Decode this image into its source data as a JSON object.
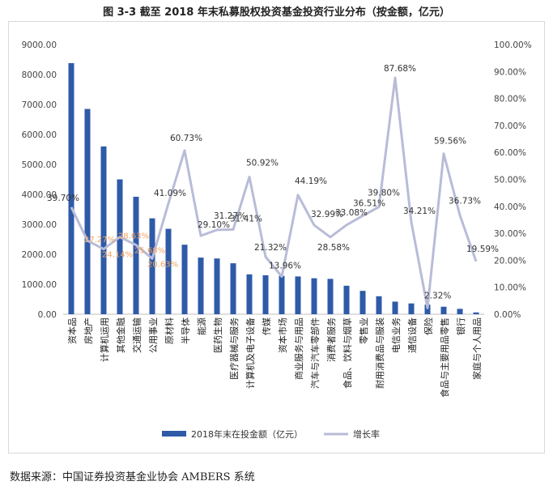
{
  "figure": {
    "title": "图 3-3  截至 2018 年末私募股权投资基金投资行业分布（按金额，亿元）",
    "source": "数据来源：中国证券投资基金业协会 AMBERS 系统"
  },
  "chart_data": {
    "type": "bar",
    "categories": [
      "资本品",
      "房地产",
      "计算机运用",
      "其他金融",
      "交通运输",
      "公用事业",
      "原材料",
      "半导体",
      "能源",
      "医药生物",
      "医疗器械与服务",
      "计算机及电子设备",
      "传媒",
      "资本市场",
      "商业服务与用品",
      "汽车与汽车零部件",
      "消费者服务",
      "食品、饮料与烟草",
      "零售业",
      "耐用消费品与服装",
      "电信业务",
      "通信设备",
      "保险",
      "食品与主要用品零售",
      "银行",
      "家庭与个人用品"
    ],
    "series": [
      {
        "name": "2018年末在投金额（亿元）",
        "type": "bar",
        "axis": "left",
        "color": "#2e5aa8",
        "values": [
          8380,
          6850,
          5600,
          4500,
          3920,
          3200,
          2850,
          2320,
          1890,
          1860,
          1700,
          1330,
          1300,
          1280,
          1260,
          1200,
          1180,
          950,
          780,
          600,
          420,
          360,
          320,
          250,
          180,
          60
        ]
      },
      {
        "name": "增长率",
        "type": "line",
        "axis": "right",
        "color": "#b8bcd8",
        "values": [
          39.7,
          27.27,
          24.14,
          28.63,
          25.68,
          20.63,
          41.09,
          60.73,
          29.1,
          31.27,
          31.41,
          50.92,
          21.32,
          13.96,
          44.19,
          32.99,
          28.58,
          33.08,
          36.51,
          39.8,
          87.68,
          34.21,
          2.32,
          59.56,
          36.73,
          19.59
        ],
        "labels": [
          "39.70%",
          "27.27%",
          "24.14%",
          "28.63%",
          "25.68%",
          "20.63%",
          "41.09%",
          "60.73%",
          "29.10%",
          "31.27%",
          "31.41%",
          "50.92%",
          "21.32%",
          "13.96%",
          "44.19%",
          "32.99%",
          "28.58%",
          "33.08%",
          "36.51%",
          "39.80%",
          "87.68%",
          "34.21%",
          "2.32%",
          "59.56%",
          "36.73%",
          "19.59%"
        ]
      }
    ],
    "y_left": {
      "min": 0,
      "max": 9000,
      "step": 1000,
      "ticks": [
        "0.00",
        "1000.00",
        "2000.00",
        "3000.00",
        "4000.00",
        "5000.00",
        "6000.00",
        "7000.00",
        "8000.00",
        "9000.00"
      ]
    },
    "y_right": {
      "min": 0,
      "max": 100,
      "step": 10,
      "ticks": [
        "0.00%",
        "10.00%",
        "20.00%",
        "30.00%",
        "40.00%",
        "50.00%",
        "60.00%",
        "70.00%",
        "80.00%",
        "90.00%",
        "100.00%"
      ]
    },
    "grid": false,
    "legend_position": "bottom"
  }
}
